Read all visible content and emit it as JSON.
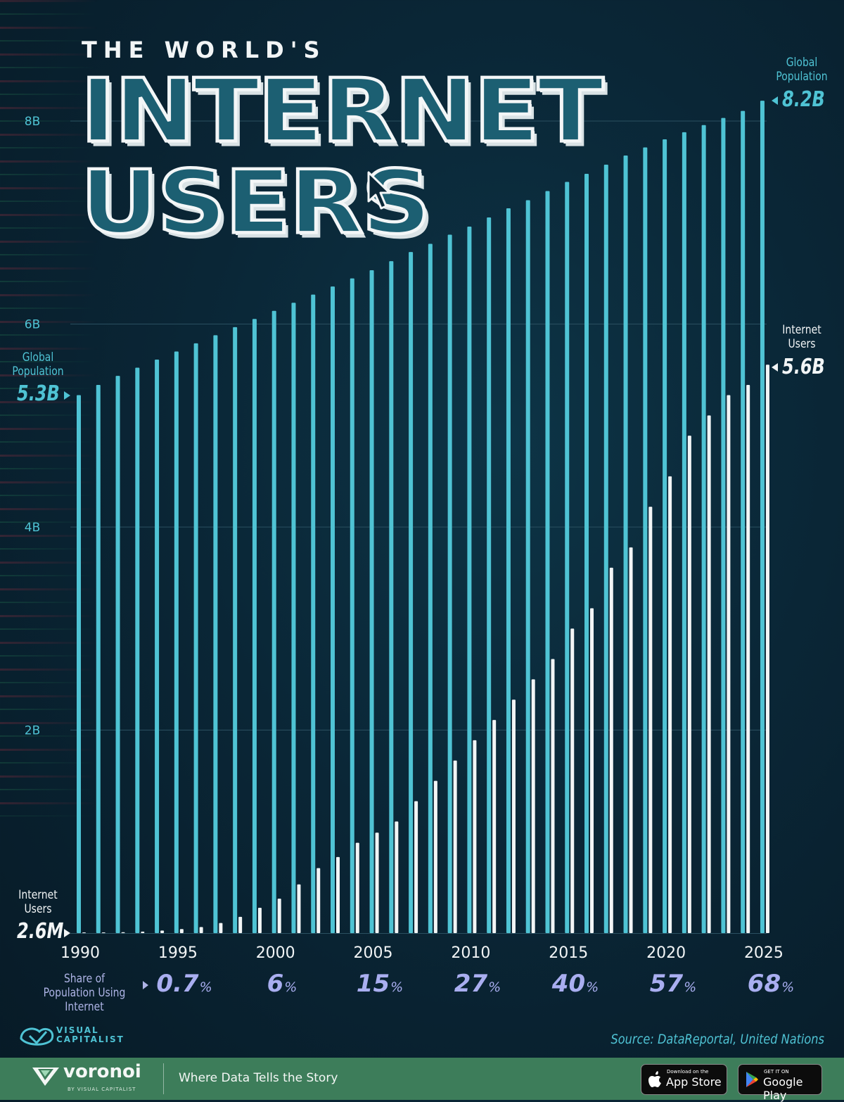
{
  "header": {
    "title_small": "THE WORLD'S",
    "title_line1": "INTERNET",
    "title_line2": "USERS"
  },
  "callouts": {
    "left_population_label": "Global Population",
    "left_population_value": "5.3B",
    "left_users_label": "Internet Users",
    "left_users_value": "2.6M",
    "right_population_label": "Global Population",
    "right_population_value": "8.2B",
    "right_users_label": "Internet Users",
    "right_users_value": "5.6B"
  },
  "share_row": {
    "label": "Share of Population Using Internet",
    "items": [
      {
        "year": "1995",
        "value": "0.7",
        "unit": "%"
      },
      {
        "year": "2000",
        "value": "6",
        "unit": "%"
      },
      {
        "year": "2005",
        "value": "15",
        "unit": "%"
      },
      {
        "year": "2010",
        "value": "27",
        "unit": "%"
      },
      {
        "year": "2015",
        "value": "40",
        "unit": "%"
      },
      {
        "year": "2020",
        "value": "57",
        "unit": "%"
      },
      {
        "year": "2025",
        "value": "68",
        "unit": "%"
      }
    ]
  },
  "footer": {
    "brand": "voronoi",
    "brand_sub": "BY VISUAL CAPITALIST",
    "tagline": "Where Data Tells the Story",
    "vc_logo_text": "VISUAL CAPITALIST",
    "source": "Source: DataReportal, United Nations",
    "app_store_small": "Download on the",
    "app_store_big": "App Store",
    "google_play_small": "GET IT ON",
    "google_play_big": "Google Play"
  },
  "chart_data": {
    "type": "bar",
    "ylim": [
      0,
      8.4
    ],
    "yticks": [
      2,
      4,
      6,
      8
    ],
    "ytick_labels": [
      "2B",
      "4B",
      "6B",
      "8B"
    ],
    "grid": true,
    "xtick_labels": [
      "1990",
      "1995",
      "2000",
      "2005",
      "2010",
      "2015",
      "2020",
      "2025"
    ],
    "categories": [
      "1990",
      "1991",
      "1992",
      "1993",
      "1994",
      "1995",
      "1996",
      "1997",
      "1998",
      "1999",
      "2000",
      "2001",
      "2002",
      "2003",
      "2004",
      "2005",
      "2006",
      "2007",
      "2008",
      "2009",
      "2010",
      "2011",
      "2012",
      "2013",
      "2014",
      "2015",
      "2016",
      "2017",
      "2018",
      "2019",
      "2020",
      "2021",
      "2022",
      "2023",
      "2024",
      "2025"
    ],
    "colors": {
      "population": "#4fc3d4",
      "users": "#f2f5f6",
      "grid": "#2a4f60"
    },
    "series": [
      {
        "name": "Global Population",
        "values": [
          5.3,
          5.4,
          5.49,
          5.57,
          5.65,
          5.73,
          5.81,
          5.89,
          5.97,
          6.05,
          6.13,
          6.21,
          6.29,
          6.37,
          6.45,
          6.53,
          6.62,
          6.71,
          6.79,
          6.88,
          6.96,
          7.05,
          7.14,
          7.22,
          7.31,
          7.4,
          7.48,
          7.57,
          7.66,
          7.74,
          7.82,
          7.89,
          7.96,
          8.03,
          8.1,
          8.2
        ]
      },
      {
        "name": "Internet Users",
        "values": [
          0.0026,
          0.005,
          0.009,
          0.015,
          0.025,
          0.04,
          0.06,
          0.1,
          0.16,
          0.25,
          0.34,
          0.48,
          0.64,
          0.75,
          0.89,
          0.99,
          1.1,
          1.3,
          1.5,
          1.7,
          1.9,
          2.1,
          2.3,
          2.5,
          2.7,
          3.0,
          3.2,
          3.6,
          3.8,
          4.2,
          4.5,
          4.9,
          5.1,
          5.3,
          5.4,
          5.6
        ]
      }
    ]
  }
}
